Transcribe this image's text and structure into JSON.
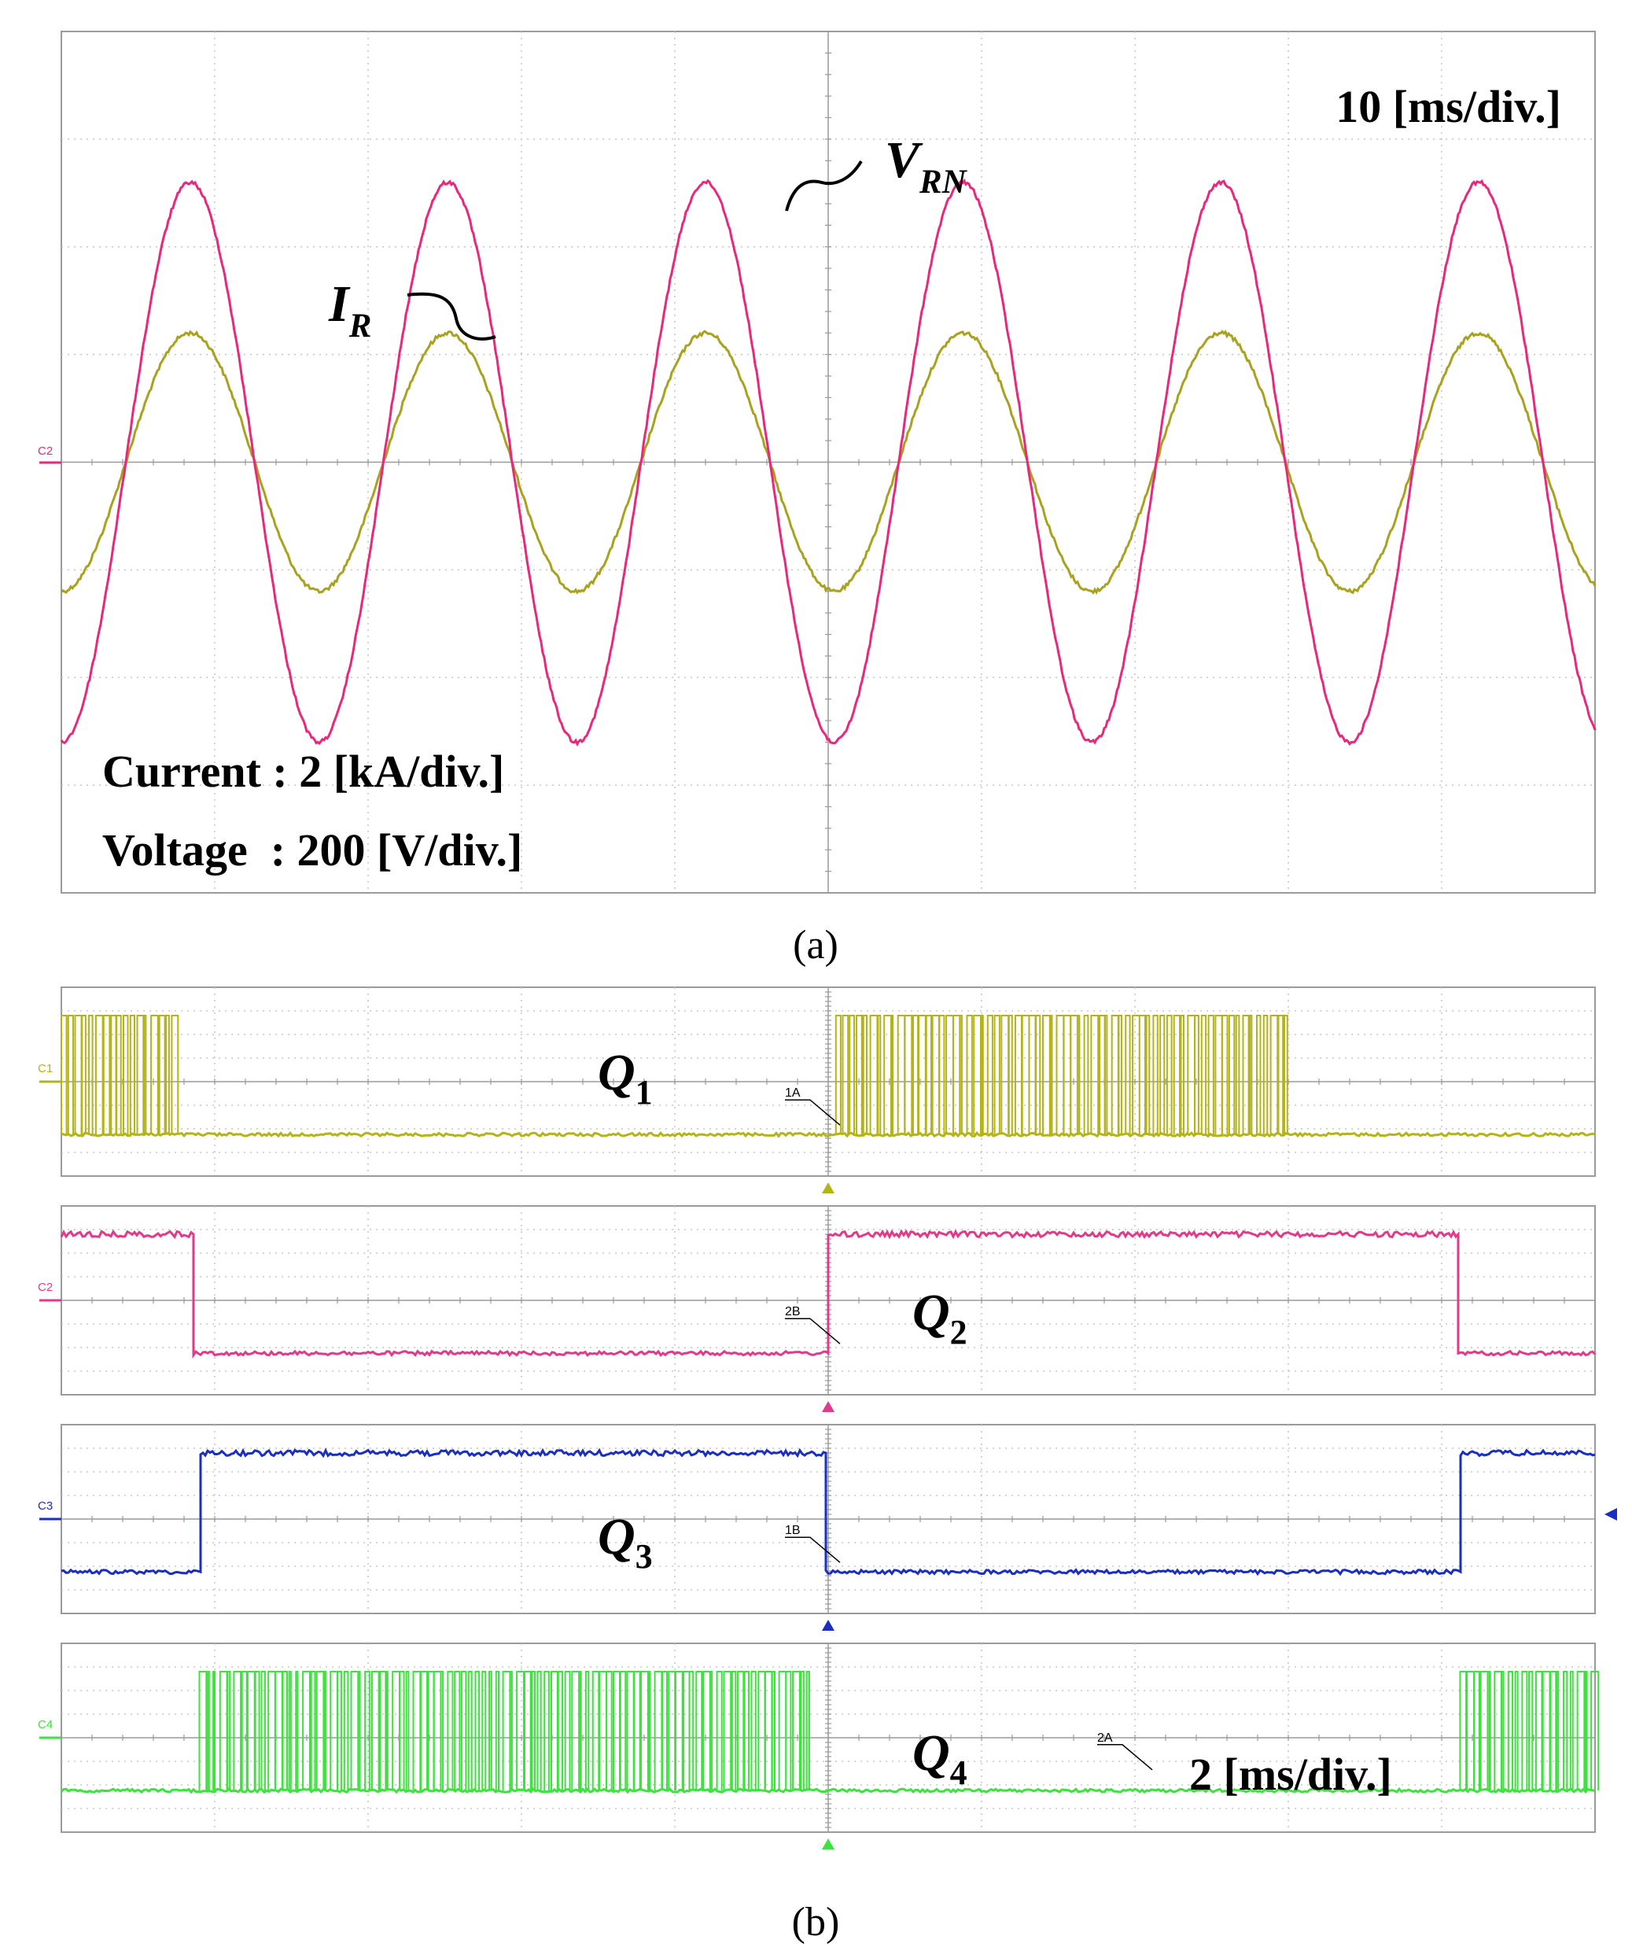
{
  "colors": {
    "voltage": "#e8287c",
    "current": "#a8a21e",
    "q1": "#b2b41a",
    "q2": "#e03a8a",
    "q3": "#1a2fbf",
    "q4": "#3ee23e",
    "grid": "#c4c4c4",
    "frame": "#9a9a9a"
  },
  "chart_data": [
    {
      "id": "a",
      "type": "line",
      "caption": "(a)",
      "timebase": "10 [ms/div.]",
      "scale_current": "Current : 2 [kA/div.]",
      "scale_voltage": "Voltage  : 200 [V/div.]",
      "channel_marker": "C2",
      "x_divisions": 10,
      "y_divisions": 8,
      "x_units": "div",
      "y_units": "div",
      "series": [
        {
          "name": "V_RN",
          "label_main": "V",
          "label_sub": "RN",
          "color_key": "voltage",
          "amplitude_div": 2.6,
          "period_div": 1.68,
          "phase_div": 0.42
        },
        {
          "name": "I_R",
          "label_main": "I",
          "label_sub": "R",
          "color_key": "current",
          "amplitude_div": 1.2,
          "period_div": 1.68,
          "phase_div": 0.42
        }
      ]
    },
    {
      "id": "b",
      "type": "line",
      "caption": "(b)",
      "timebase": "2 [ms/div.]",
      "x_divisions": 10,
      "x_units": "div",
      "channels": [
        {
          "name": "Q1",
          "label_main": "Q",
          "label_sub": "1",
          "marker": "C1",
          "cursor": "1A",
          "color_key": "q1",
          "mode": "pwm",
          "on_intervals_div": [
            [
              0,
              0.75
            ],
            [
              5.05,
              8.0
            ]
          ]
        },
        {
          "name": "Q2",
          "label_main": "Q",
          "label_sub": "2",
          "marker": "C2",
          "cursor": "2B",
          "color_key": "q2",
          "mode": "high",
          "on_intervals_div": [
            [
              0,
              0.85
            ],
            [
              5.0,
              9.1
            ]
          ]
        },
        {
          "name": "Q3",
          "label_main": "Q",
          "label_sub": "3",
          "marker": "C3",
          "cursor": "1B",
          "color_key": "q3",
          "mode": "high",
          "on_intervals_div": [
            [
              0.9,
              4.98
            ],
            [
              9.12,
              10
            ]
          ]
        },
        {
          "name": "Q4",
          "label_main": "Q",
          "label_sub": "4",
          "marker": "C4",
          "cursor": "2A",
          "color_key": "q4",
          "mode": "pwm",
          "on_intervals_div": [
            [
              0.9,
              4.9
            ],
            [
              9.12,
              10
            ]
          ]
        }
      ]
    }
  ]
}
